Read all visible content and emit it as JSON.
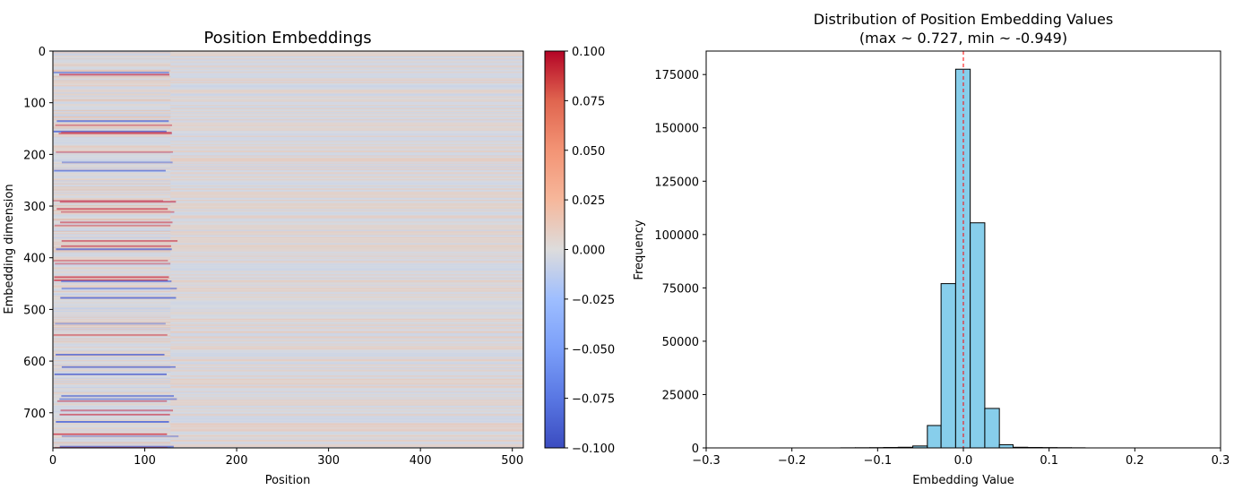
{
  "chart_data": [
    {
      "type": "heatmap",
      "title": "Position Embeddings",
      "xlabel": "Position",
      "ylabel": "Embedding dimension",
      "xlim": [
        0,
        512
      ],
      "ylim": [
        768,
        0
      ],
      "x_ticks": [
        0,
        100,
        200,
        300,
        400,
        500
      ],
      "y_ticks": [
        0,
        100,
        200,
        300,
        400,
        500,
        600,
        700
      ],
      "colormap": "coolwarm",
      "colorbar": {
        "vmin": -0.1,
        "vmax": 0.1,
        "ticks": [
          "0.100",
          "0.075",
          "0.050",
          "0.025",
          "0.000",
          "−0.025",
          "−0.050",
          "−0.075",
          "−0.100"
        ]
      },
      "description_note": ""
    },
    {
      "type": "bar",
      "title": "Distribution of Position Embedding Values",
      "subtitle": "(max ~ 0.727, min ~ -0.949)",
      "xlabel": "Embedding Value",
      "ylabel": "Frequency",
      "xlim": [
        -0.3,
        0.3
      ],
      "ylim": [
        0,
        186000
      ],
      "x_ticks": [
        "−0.3",
        "−0.2",
        "−0.1",
        "0.0",
        "0.1",
        "0.2",
        "0.3"
      ],
      "y_ticks": [
        0,
        25000,
        50000,
        75000,
        100000,
        125000,
        150000,
        175000
      ],
      "bar_color": "#87ceeb",
      "edge_color": "#000000",
      "mean_line": {
        "x": 0.0,
        "color": "#ff0000",
        "style": "dashed"
      },
      "bins": [
        {
          "x0": -0.143,
          "x1": -0.126,
          "value": 50
        },
        {
          "x0": -0.126,
          "x1": -0.109,
          "value": 80
        },
        {
          "x0": -0.109,
          "x1": -0.093,
          "value": 120
        },
        {
          "x0": -0.093,
          "x1": -0.076,
          "value": 200
        },
        {
          "x0": -0.076,
          "x1": -0.059,
          "value": 300
        },
        {
          "x0": -0.059,
          "x1": -0.042,
          "value": 900
        },
        {
          "x0": -0.042,
          "x1": -0.026,
          "value": 10500
        },
        {
          "x0": -0.026,
          "x1": -0.009,
          "value": 77000
        },
        {
          "x0": -0.009,
          "x1": 0.008,
          "value": 177500
        },
        {
          "x0": 0.008,
          "x1": 0.025,
          "value": 105500
        },
        {
          "x0": 0.025,
          "x1": 0.042,
          "value": 18500
        },
        {
          "x0": 0.042,
          "x1": 0.058,
          "value": 1500
        },
        {
          "x0": 0.058,
          "x1": 0.075,
          "value": 300
        },
        {
          "x0": 0.075,
          "x1": 0.092,
          "value": 200
        },
        {
          "x0": 0.092,
          "x1": 0.109,
          "value": 150
        },
        {
          "x0": 0.109,
          "x1": 0.126,
          "value": 100
        },
        {
          "x0": 0.126,
          "x1": 0.142,
          "value": 60
        }
      ]
    }
  ]
}
